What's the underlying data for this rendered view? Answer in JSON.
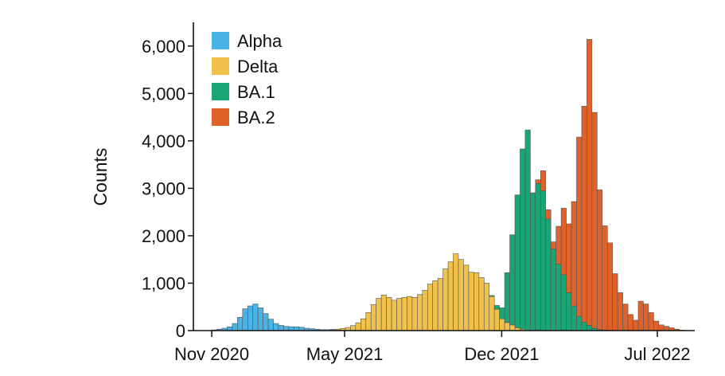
{
  "chart_data": {
    "type": "bar",
    "stacked": true,
    "ylabel": "Counts",
    "xlabel": "",
    "ylim": [
      0,
      6500
    ],
    "yticks": [
      0,
      1000,
      2000,
      3000,
      4000,
      5000,
      6000
    ],
    "ytick_labels": [
      "0",
      "1,000",
      "2,000",
      "3,000",
      "4,000",
      "5,000",
      "6,000"
    ],
    "xlim": [
      "2020-10-07",
      "2022-08-21"
    ],
    "xticks": [
      {
        "date": "2020-11-01",
        "label": "Nov 2020"
      },
      {
        "date": "2021-05-01",
        "label": "May 2021"
      },
      {
        "date": "2021-12-01",
        "label": "Dec 2021"
      },
      {
        "date": "2022-07-01",
        "label": "Jul 2022"
      }
    ],
    "bin_width_days": 7,
    "legend_position": "top-left",
    "colors": {
      "Alpha": "#4ab3e6",
      "Delta": "#f0c24b",
      "BA.1": "#1aa574",
      "BA.2": "#e0622b"
    },
    "weeks": [
      "2020-11-01",
      "2020-11-08",
      "2020-11-15",
      "2020-11-22",
      "2020-11-29",
      "2020-12-06",
      "2020-12-13",
      "2020-12-20",
      "2020-12-27",
      "2021-01-03",
      "2021-01-10",
      "2021-01-17",
      "2021-01-24",
      "2021-01-31",
      "2021-02-07",
      "2021-02-14",
      "2021-02-21",
      "2021-02-28",
      "2021-03-07",
      "2021-03-14",
      "2021-03-21",
      "2021-03-28",
      "2021-04-04",
      "2021-04-11",
      "2021-04-18",
      "2021-04-25",
      "2021-05-02",
      "2021-05-09",
      "2021-05-16",
      "2021-05-23",
      "2021-05-30",
      "2021-06-06",
      "2021-06-13",
      "2021-06-20",
      "2021-06-27",
      "2021-07-04",
      "2021-07-11",
      "2021-07-18",
      "2021-07-25",
      "2021-08-01",
      "2021-08-08",
      "2021-08-15",
      "2021-08-22",
      "2021-08-29",
      "2021-09-05",
      "2021-09-12",
      "2021-09-19",
      "2021-09-26",
      "2021-10-03",
      "2021-10-10",
      "2021-10-17",
      "2021-10-24",
      "2021-10-31",
      "2021-11-07",
      "2021-11-14",
      "2021-11-21",
      "2021-11-28",
      "2021-12-05",
      "2021-12-12",
      "2021-12-19",
      "2021-12-26",
      "2022-01-02",
      "2022-01-09",
      "2022-01-16",
      "2022-01-23",
      "2022-01-30",
      "2022-02-06",
      "2022-02-13",
      "2022-02-20",
      "2022-02-27",
      "2022-03-06",
      "2022-03-13",
      "2022-03-20",
      "2022-03-27",
      "2022-04-03",
      "2022-04-10",
      "2022-04-17",
      "2022-04-24",
      "2022-05-01",
      "2022-05-08",
      "2022-05-15",
      "2022-05-22",
      "2022-05-29",
      "2022-06-05",
      "2022-06-12",
      "2022-06-19",
      "2022-06-26",
      "2022-07-03",
      "2022-07-10",
      "2022-07-17",
      "2022-07-24",
      "2022-07-31"
    ],
    "series": [
      {
        "name": "Alpha",
        "values": [
          15,
          30,
          50,
          80,
          150,
          280,
          460,
          520,
          560,
          480,
          360,
          240,
          150,
          110,
          90,
          80,
          80,
          70,
          50,
          40,
          30,
          20,
          20,
          15,
          10,
          5,
          5,
          5,
          5,
          0,
          0,
          0,
          0,
          0,
          0,
          0,
          0,
          0,
          0,
          0,
          0,
          0,
          0,
          0,
          0,
          0,
          0,
          0,
          0,
          0,
          0,
          0,
          0,
          0,
          0,
          0,
          0,
          0,
          0,
          0,
          0,
          0,
          0,
          0,
          0,
          0,
          0,
          0,
          0,
          0,
          0,
          0,
          0,
          0,
          0,
          0,
          0,
          0,
          0,
          0,
          0,
          0,
          0,
          0,
          0,
          0,
          0,
          0,
          0,
          0,
          0,
          0
        ]
      },
      {
        "name": "Delta",
        "values": [
          0,
          0,
          0,
          0,
          0,
          0,
          0,
          0,
          0,
          0,
          0,
          0,
          0,
          0,
          0,
          0,
          0,
          0,
          0,
          0,
          0,
          0,
          0,
          10,
          20,
          40,
          60,
          100,
          160,
          250,
          380,
          550,
          680,
          750,
          700,
          640,
          680,
          700,
          720,
          700,
          760,
          850,
          980,
          1050,
          1100,
          1300,
          1450,
          1620,
          1500,
          1380,
          1230,
          1220,
          1120,
          1000,
          720,
          450,
          250,
          170,
          120,
          60,
          30,
          10,
          5,
          0,
          0,
          0,
          0,
          0,
          0,
          0,
          0,
          0,
          0,
          0,
          0,
          0,
          0,
          0,
          0,
          0,
          0,
          0,
          0,
          0,
          0,
          0,
          0,
          0,
          0,
          0,
          0,
          0
        ]
      },
      {
        "name": "BA.1",
        "values": [
          0,
          0,
          0,
          0,
          0,
          0,
          0,
          0,
          0,
          0,
          0,
          0,
          0,
          0,
          0,
          0,
          0,
          0,
          0,
          0,
          0,
          0,
          0,
          0,
          0,
          0,
          0,
          0,
          0,
          0,
          0,
          0,
          0,
          0,
          0,
          0,
          0,
          0,
          0,
          0,
          0,
          0,
          0,
          0,
          0,
          0,
          0,
          0,
          0,
          0,
          0,
          0,
          0,
          0,
          20,
          80,
          230,
          1050,
          1900,
          2800,
          3800,
          4220,
          2900,
          3100,
          2950,
          2350,
          1720,
          1400,
          1180,
          800,
          520,
          300,
          180,
          110,
          50,
          20,
          10,
          0,
          0,
          0,
          0,
          0,
          0,
          0,
          0,
          0,
          0,
          0,
          0,
          0,
          0,
          0
        ]
      },
      {
        "name": "BA.2",
        "values": [
          0,
          0,
          0,
          0,
          0,
          0,
          0,
          0,
          0,
          0,
          0,
          0,
          0,
          0,
          0,
          0,
          0,
          0,
          0,
          0,
          0,
          0,
          0,
          0,
          0,
          0,
          0,
          0,
          0,
          0,
          0,
          0,
          0,
          0,
          0,
          0,
          0,
          0,
          0,
          0,
          0,
          0,
          0,
          0,
          0,
          0,
          0,
          0,
          0,
          0,
          0,
          0,
          0,
          0,
          0,
          0,
          0,
          0,
          0,
          0,
          0,
          0,
          0,
          80,
          420,
          200,
          150,
          800,
          1400,
          1450,
          2200,
          3780,
          4550,
          6030,
          4550,
          2950,
          2200,
          1850,
          1200,
          800,
          560,
          340,
          220,
          620,
          560,
          380,
          200,
          120,
          90,
          60,
          30,
          10
        ]
      }
    ]
  }
}
